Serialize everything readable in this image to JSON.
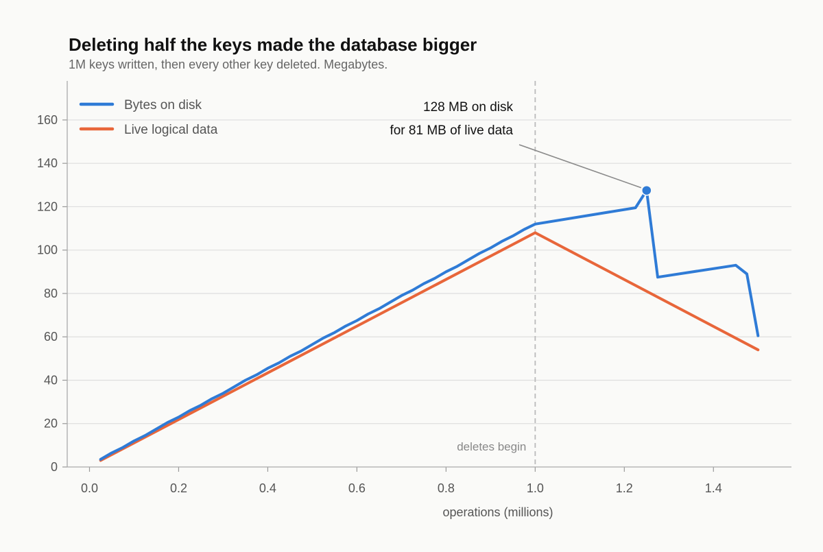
{
  "chart_data": {
    "type": "line",
    "title": "Deleting half the keys made the database bigger",
    "subtitle": "1M keys written, then every other key deleted. Megabytes.",
    "xlabel": "operations (millions)",
    "ylabel": "",
    "xlim": [
      -0.05,
      1.575
    ],
    "ylim": [
      0,
      178
    ],
    "xticks": [
      "0.0",
      "0.2",
      "0.4",
      "0.6",
      "0.8",
      "1.0",
      "1.2",
      "1.4"
    ],
    "yticks": [
      "0",
      "20",
      "40",
      "60",
      "80",
      "100",
      "120",
      "140",
      "160"
    ],
    "grid": "horizontal",
    "legend_position": "top-left",
    "series": [
      {
        "name": "Bytes on disk",
        "color": "#2f7bd6",
        "x": [
          0.025,
          0.05,
          0.075,
          0.1,
          0.125,
          0.15,
          0.175,
          0.2,
          0.225,
          0.25,
          0.275,
          0.3,
          0.325,
          0.35,
          0.375,
          0.4,
          0.425,
          0.45,
          0.475,
          0.5,
          0.525,
          0.55,
          0.575,
          0.6,
          0.625,
          0.65,
          0.675,
          0.7,
          0.725,
          0.75,
          0.775,
          0.8,
          0.825,
          0.85,
          0.875,
          0.9,
          0.925,
          0.95,
          0.975,
          1.0,
          1.225,
          1.25,
          1.275,
          1.45,
          1.475,
          1.5
        ],
        "y": [
          3.5,
          6.5,
          9,
          12,
          14.5,
          17.5,
          20.5,
          23,
          26,
          28.5,
          31.5,
          34,
          37,
          40,
          42.5,
          45.5,
          48,
          51,
          53.5,
          56.5,
          59.5,
          62,
          65,
          67.5,
          70.5,
          73,
          76,
          79,
          81.5,
          84.5,
          87,
          90,
          92.5,
          95.5,
          98.5,
          101,
          104,
          106.5,
          109.5,
          112,
          119.5,
          127.5,
          87.5,
          93,
          89,
          60.5
        ]
      },
      {
        "name": "Live logical data",
        "color": "#e8663a",
        "x": [
          0.025,
          1.0,
          1.5
        ],
        "y": [
          3,
          108,
          54
        ]
      }
    ],
    "annotations": {
      "peak_point": {
        "x": 1.25,
        "y": 127.5
      },
      "peak_text_line1": "128 MB on disk",
      "peak_text_line2": "for 81 MB of live data",
      "marker_x": 1.0,
      "marker_label": "deletes begin"
    }
  }
}
